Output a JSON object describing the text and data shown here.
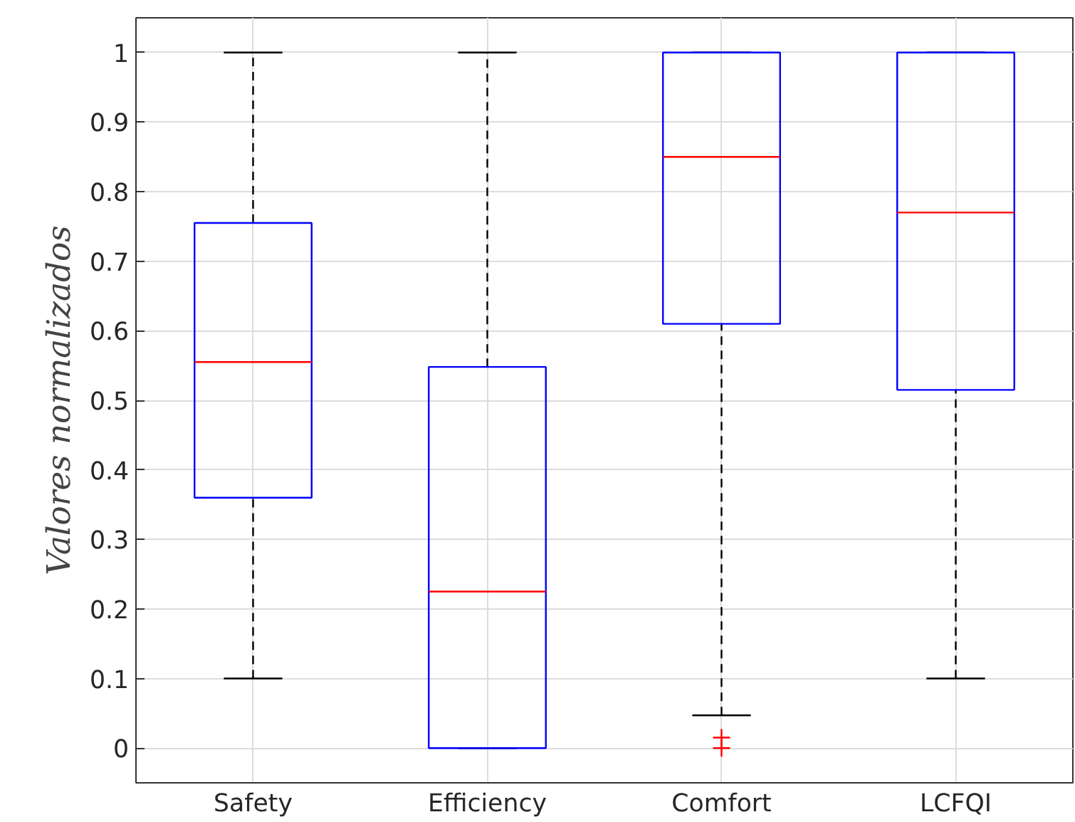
{
  "chart_data": {
    "type": "box",
    "ylabel": "Valores normalizados",
    "categories": [
      "Safety",
      "Efficiency",
      "Comfort",
      "LCFQI"
    ],
    "boxes": [
      {
        "low": 0.1,
        "q1": 0.36,
        "median": 0.555,
        "q3": 0.755,
        "high": 1.0
      },
      {
        "low": 0.0,
        "q1": 0.0,
        "median": 0.225,
        "q3": 0.548,
        "high": 1.0
      },
      {
        "low": 0.047,
        "q1": 0.61,
        "median": 0.85,
        "q3": 1.0,
        "high": 1.0,
        "outliers": [
          0.015,
          0.0
        ]
      },
      {
        "low": 0.1,
        "q1": 0.515,
        "median": 0.77,
        "q3": 1.0,
        "high": 1.0
      }
    ],
    "color": "#0000ff",
    "ylim": [
      -0.05,
      1.05
    ],
    "yticks": [
      0,
      0.1,
      0.2,
      0.3,
      0.4,
      0.5,
      0.6,
      0.7,
      0.8,
      0.9,
      1
    ],
    "grid": true
  }
}
